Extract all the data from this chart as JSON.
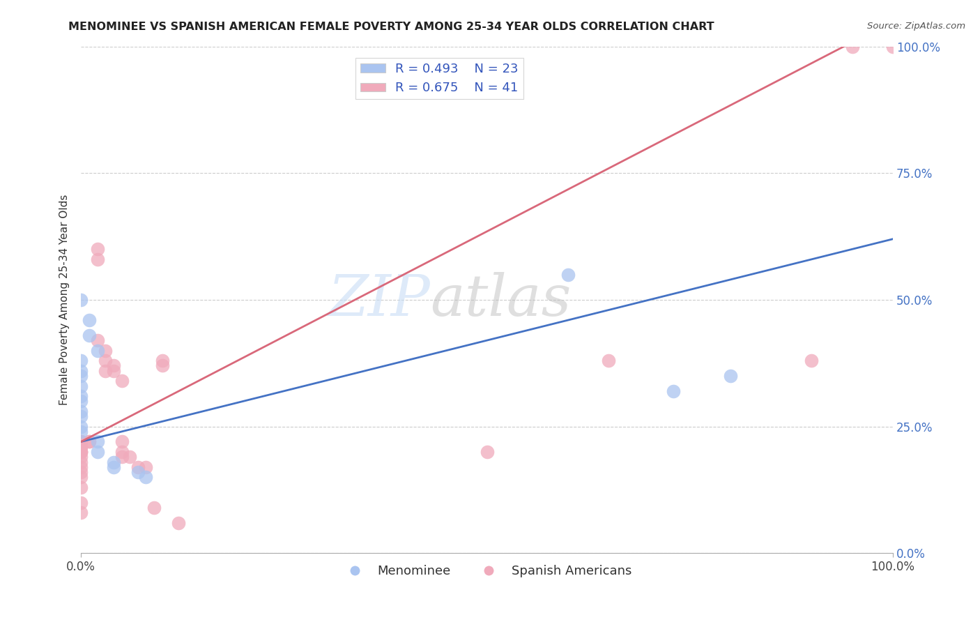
{
  "title": "MENOMINEE VS SPANISH AMERICAN FEMALE POVERTY AMONG 25-34 YEAR OLDS CORRELATION CHART",
  "source": "Source: ZipAtlas.com",
  "ylabel": "Female Poverty Among 25-34 Year Olds",
  "xlim": [
    0,
    1.0
  ],
  "ylim": [
    0,
    1.0
  ],
  "ytick_values": [
    0.0,
    0.25,
    0.5,
    0.75,
    1.0
  ],
  "ytick_labels_right": [
    "0.0%",
    "25.0%",
    "50.0%",
    "75.0%",
    "100.0%"
  ],
  "xtick_values": [
    0.0,
    1.0
  ],
  "xtick_labels": [
    "0.0%",
    "100.0%"
  ],
  "watermark_zip": "ZIP",
  "watermark_atlas": "atlas",
  "menominee_R": 0.493,
  "menominee_N": 23,
  "spanish_R": 0.675,
  "spanish_N": 41,
  "menominee_color": "#aac4f0",
  "spanish_color": "#f0aabb",
  "menominee_line_color": "#4472c4",
  "spanish_line_color": "#d9687a",
  "menominee_line": [
    [
      0.0,
      0.22
    ],
    [
      1.0,
      0.62
    ]
  ],
  "spanish_line": [
    [
      0.0,
      0.22
    ],
    [
      1.0,
      1.05
    ]
  ],
  "menominee_scatter": [
    [
      0.0,
      0.5
    ],
    [
      0.01,
      0.46
    ],
    [
      0.01,
      0.43
    ],
    [
      0.02,
      0.4
    ],
    [
      0.0,
      0.38
    ],
    [
      0.0,
      0.36
    ],
    [
      0.0,
      0.35
    ],
    [
      0.0,
      0.33
    ],
    [
      0.0,
      0.31
    ],
    [
      0.0,
      0.3
    ],
    [
      0.0,
      0.28
    ],
    [
      0.0,
      0.27
    ],
    [
      0.0,
      0.25
    ],
    [
      0.0,
      0.24
    ],
    [
      0.02,
      0.22
    ],
    [
      0.02,
      0.2
    ],
    [
      0.04,
      0.18
    ],
    [
      0.04,
      0.17
    ],
    [
      0.07,
      0.16
    ],
    [
      0.08,
      0.15
    ],
    [
      0.6,
      0.55
    ],
    [
      0.73,
      0.32
    ],
    [
      0.8,
      0.35
    ]
  ],
  "spanish_scatter": [
    [
      0.0,
      0.22
    ],
    [
      0.0,
      0.22
    ],
    [
      0.0,
      0.21
    ],
    [
      0.0,
      0.21
    ],
    [
      0.0,
      0.2
    ],
    [
      0.0,
      0.2
    ],
    [
      0.0,
      0.2
    ],
    [
      0.0,
      0.19
    ],
    [
      0.0,
      0.18
    ],
    [
      0.0,
      0.17
    ],
    [
      0.0,
      0.16
    ],
    [
      0.0,
      0.15
    ],
    [
      0.0,
      0.13
    ],
    [
      0.0,
      0.1
    ],
    [
      0.0,
      0.08
    ],
    [
      0.01,
      0.22
    ],
    [
      0.01,
      0.22
    ],
    [
      0.02,
      0.6
    ],
    [
      0.02,
      0.58
    ],
    [
      0.02,
      0.42
    ],
    [
      0.03,
      0.4
    ],
    [
      0.03,
      0.38
    ],
    [
      0.03,
      0.36
    ],
    [
      0.04,
      0.37
    ],
    [
      0.04,
      0.36
    ],
    [
      0.05,
      0.34
    ],
    [
      0.05,
      0.22
    ],
    [
      0.05,
      0.2
    ],
    [
      0.05,
      0.19
    ],
    [
      0.06,
      0.19
    ],
    [
      0.07,
      0.17
    ],
    [
      0.08,
      0.17
    ],
    [
      0.09,
      0.09
    ],
    [
      0.1,
      0.38
    ],
    [
      0.1,
      0.37
    ],
    [
      0.12,
      0.06
    ],
    [
      0.5,
      0.2
    ],
    [
      0.65,
      0.38
    ],
    [
      0.9,
      0.38
    ],
    [
      0.95,
      1.0
    ],
    [
      1.0,
      1.0
    ]
  ],
  "legend_label_menominee": "Menominee",
  "legend_label_spanish": "Spanish Americans",
  "background_color": "#ffffff",
  "grid_color": "#cccccc",
  "legend_R_color": "#3355bb"
}
